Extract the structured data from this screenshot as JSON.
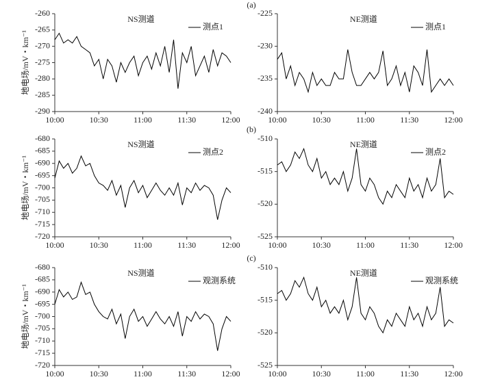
{
  "panel_labels": [
    "(a)",
    "(b)",
    "(c)"
  ],
  "chart_data": [
    {
      "type": "line",
      "title": "NS测道",
      "ylabel": "地电场/mV・km⁻¹",
      "x": [
        "10:00",
        "10:03",
        "10:06",
        "10:09",
        "10:12",
        "10:15",
        "10:18",
        "10:21",
        "10:24",
        "10:27",
        "10:30",
        "10:33",
        "10:36",
        "10:39",
        "10:42",
        "10:45",
        "10:48",
        "10:51",
        "10:54",
        "10:57",
        "11:00",
        "11:03",
        "11:06",
        "11:09",
        "11:12",
        "11:15",
        "11:18",
        "11:21",
        "11:24",
        "11:27",
        "11:30",
        "11:33",
        "11:36",
        "11:39",
        "11:42",
        "11:45",
        "11:48",
        "11:51",
        "11:54",
        "11:57",
        "12:00"
      ],
      "series": [
        {
          "name": "测点1",
          "color": "#000000",
          "values": [
            -268,
            -266,
            -269,
            -268,
            -269,
            -267,
            -270,
            -271,
            -272,
            -276,
            -274,
            -280,
            -274,
            -276,
            -281,
            -275,
            -278,
            -275,
            -273,
            -279,
            -275,
            -273,
            -277,
            -272,
            -276,
            -270,
            -278,
            -268,
            -283,
            -272,
            -275,
            -270,
            -279,
            -276,
            -273,
            -278,
            -271,
            -276,
            -272,
            -273,
            -275
          ]
        }
      ],
      "xlim": [
        "10:00",
        "12:00"
      ],
      "xticks": [
        "10:00",
        "10:30",
        "11:00",
        "11:30",
        "12:00"
      ],
      "ylim": [
        -290,
        -260
      ],
      "yticks": [
        -290,
        -285,
        -280,
        -275,
        -270,
        -265,
        -260
      ]
    },
    {
      "type": "line",
      "title": "NE测道",
      "x": [
        "10:00",
        "10:03",
        "10:06",
        "10:09",
        "10:12",
        "10:15",
        "10:18",
        "10:21",
        "10:24",
        "10:27",
        "10:30",
        "10:33",
        "10:36",
        "10:39",
        "10:42",
        "10:45",
        "10:48",
        "10:51",
        "10:54",
        "10:57",
        "11:00",
        "11:03",
        "11:06",
        "11:09",
        "11:12",
        "11:15",
        "11:18",
        "11:21",
        "11:24",
        "11:27",
        "11:30",
        "11:33",
        "11:36",
        "11:39",
        "11:42",
        "11:45",
        "11:48",
        "11:51",
        "11:54",
        "11:57",
        "12:00"
      ],
      "series": [
        {
          "name": "测点1",
          "color": "#000000",
          "values": [
            -232,
            -231,
            -235,
            -233,
            -236,
            -234,
            -235,
            -237,
            -234,
            -236,
            -235,
            -236,
            -236,
            -234,
            -235,
            -235,
            -230.5,
            -234,
            -236,
            -236,
            -235,
            -234,
            -235,
            -234,
            -230.7,
            -236,
            -235,
            -233,
            -236,
            -234,
            -237,
            -233,
            -234,
            -236,
            -230.5,
            -237,
            -236,
            -235,
            -236,
            -235,
            -236
          ]
        }
      ],
      "xlim": [
        "10:00",
        "12:00"
      ],
      "xticks": [
        "10:00",
        "10:30",
        "11:00",
        "11:30",
        "12:00"
      ],
      "ylim": [
        -240,
        -225
      ],
      "yticks": [
        -240,
        -235,
        -230,
        -225
      ]
    },
    {
      "type": "line",
      "title": "NS测道",
      "ylabel": "地电场/mV・km⁻¹",
      "x": [
        "10:00",
        "10:03",
        "10:06",
        "10:09",
        "10:12",
        "10:15",
        "10:18",
        "10:21",
        "10:24",
        "10:27",
        "10:30",
        "10:33",
        "10:36",
        "10:39",
        "10:42",
        "10:45",
        "10:48",
        "10:51",
        "10:54",
        "10:57",
        "11:00",
        "11:03",
        "11:06",
        "11:09",
        "11:12",
        "11:15",
        "11:18",
        "11:21",
        "11:24",
        "11:27",
        "11:30",
        "11:33",
        "11:36",
        "11:39",
        "11:42",
        "11:45",
        "11:48",
        "11:51",
        "11:54",
        "11:57",
        "12:00"
      ],
      "series": [
        {
          "name": "测点2",
          "color": "#000000",
          "values": [
            -696,
            -689,
            -692,
            -690,
            -694,
            -692,
            -687,
            -691,
            -690,
            -695,
            -698,
            -699,
            -701,
            -697,
            -703,
            -699,
            -708,
            -700,
            -697,
            -702,
            -699,
            -704,
            -701,
            -698,
            -701,
            -703,
            -700,
            -703,
            -698,
            -707,
            -700,
            -702,
            -698,
            -701,
            -699,
            -700,
            -703,
            -713,
            -705,
            -700,
            -702
          ]
        }
      ],
      "xlim": [
        "10:00",
        "12:00"
      ],
      "xticks": [
        "10:00",
        "10:30",
        "11:00",
        "11:30",
        "12:00"
      ],
      "ylim": [
        -720,
        -680
      ],
      "yticks": [
        -720,
        -715,
        -710,
        -705,
        -700,
        -695,
        -690,
        -685,
        -680
      ]
    },
    {
      "type": "line",
      "title": "NE测道",
      "x": [
        "10:00",
        "10:03",
        "10:06",
        "10:09",
        "10:12",
        "10:15",
        "10:18",
        "10:21",
        "10:24",
        "10:27",
        "10:30",
        "10:33",
        "10:36",
        "10:39",
        "10:42",
        "10:45",
        "10:48",
        "10:51",
        "10:54",
        "10:57",
        "11:00",
        "11:03",
        "11:06",
        "11:09",
        "11:12",
        "11:15",
        "11:18",
        "11:21",
        "11:24",
        "11:27",
        "11:30",
        "11:33",
        "11:36",
        "11:39",
        "11:42",
        "11:45",
        "11:48",
        "11:51",
        "11:54",
        "11:57",
        "12:00"
      ],
      "series": [
        {
          "name": "测点2",
          "color": "#000000",
          "values": [
            -514,
            -513.5,
            -515,
            -514,
            -512,
            -513,
            -511.5,
            -514,
            -515,
            -513,
            -516,
            -515,
            -517,
            -516,
            -517,
            -515,
            -518,
            -516,
            -511.5,
            -517,
            -518,
            -516,
            -517,
            -519,
            -520,
            -518,
            -519,
            -517,
            -518,
            -519,
            -516,
            -518,
            -517,
            -519,
            -516,
            -518,
            -517,
            -513,
            -519,
            -518,
            -518.5
          ]
        }
      ],
      "xlim": [
        "10:00",
        "12:00"
      ],
      "xticks": [
        "10:00",
        "10:30",
        "11:00",
        "11:30",
        "12:00"
      ],
      "ylim": [
        -525,
        -510
      ],
      "yticks": [
        -525,
        -520,
        -515,
        -510
      ]
    },
    {
      "type": "line",
      "title": "NS测道",
      "ylabel": "地电场/mV・km⁻¹",
      "x": [
        "10:00",
        "10:03",
        "10:06",
        "10:09",
        "10:12",
        "10:15",
        "10:18",
        "10:21",
        "10:24",
        "10:27",
        "10:30",
        "10:33",
        "10:36",
        "10:39",
        "10:42",
        "10:45",
        "10:48",
        "10:51",
        "10:54",
        "10:57",
        "11:00",
        "11:03",
        "11:06",
        "11:09",
        "11:12",
        "11:15",
        "11:18",
        "11:21",
        "11:24",
        "11:27",
        "11:30",
        "11:33",
        "11:36",
        "11:39",
        "11:42",
        "11:45",
        "11:48",
        "11:51",
        "11:54",
        "11:57",
        "12:00"
      ],
      "series": [
        {
          "name": "观测系统",
          "color": "#000000",
          "values": [
            -695,
            -689,
            -692,
            -690,
            -693,
            -692,
            -686,
            -691,
            -690,
            -695,
            -698,
            -700,
            -701,
            -697,
            -703,
            -699,
            -709,
            -700,
            -697,
            -702,
            -700,
            -704,
            -701,
            -698,
            -701,
            -703,
            -700,
            -704,
            -698,
            -708,
            -700,
            -702,
            -698,
            -701,
            -699,
            -700,
            -703,
            -714,
            -705,
            -700,
            -702
          ]
        }
      ],
      "xlim": [
        "10:00",
        "12:00"
      ],
      "xticks": [
        "10:00",
        "10:30",
        "11:00",
        "11:30",
        "12:00"
      ],
      "ylim": [
        -720,
        -680
      ],
      "yticks": [
        -720,
        -715,
        -710,
        -705,
        -700,
        -695,
        -690,
        -685,
        -680
      ]
    },
    {
      "type": "line",
      "title": "NE测道",
      "x": [
        "10:00",
        "10:03",
        "10:06",
        "10:09",
        "10:12",
        "10:15",
        "10:18",
        "10:21",
        "10:24",
        "10:27",
        "10:30",
        "10:33",
        "10:36",
        "10:39",
        "10:42",
        "10:45",
        "10:48",
        "10:51",
        "10:54",
        "10:57",
        "11:00",
        "11:03",
        "11:06",
        "11:09",
        "11:12",
        "11:15",
        "11:18",
        "11:21",
        "11:24",
        "11:27",
        "11:30",
        "11:33",
        "11:36",
        "11:39",
        "11:42",
        "11:45",
        "11:48",
        "11:51",
        "11:54",
        "11:57",
        "12:00"
      ],
      "series": [
        {
          "name": "观测系统",
          "color": "#000000",
          "values": [
            -514,
            -513.5,
            -515,
            -514,
            -512,
            -513,
            -511.5,
            -514,
            -515,
            -513,
            -516,
            -515,
            -517,
            -516,
            -517,
            -515,
            -518,
            -516,
            -511.5,
            -517,
            -518,
            -516,
            -517,
            -519,
            -520,
            -518,
            -519,
            -517,
            -518,
            -519,
            -516,
            -518,
            -517,
            -519,
            -516,
            -518,
            -517,
            -513,
            -519,
            -518,
            -518.5
          ]
        }
      ],
      "xlim": [
        "10:00",
        "12:00"
      ],
      "xticks": [
        "10:00",
        "10:30",
        "11:00",
        "11:30",
        "12:00"
      ],
      "ylim": [
        -525,
        -510
      ],
      "yticks": [
        -525,
        -520,
        -515,
        -510
      ]
    }
  ]
}
